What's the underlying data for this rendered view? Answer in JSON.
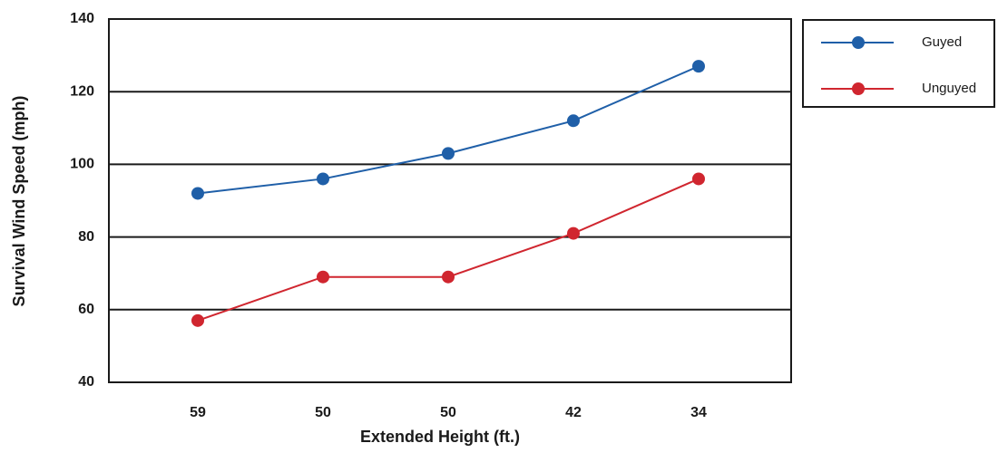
{
  "chart_data": {
    "type": "line",
    "categories": [
      "59",
      "50",
      "50",
      "42",
      "34"
    ],
    "series": [
      {
        "name": "Guyed",
        "color": "#1f5fa8",
        "values": [
          92,
          96,
          103,
          112,
          127
        ]
      },
      {
        "name": "Unguyed",
        "color": "#d0262f",
        "values": [
          57,
          69,
          69,
          81,
          96
        ]
      }
    ],
    "title": "",
    "xlabel": "Extended Height (ft.)",
    "ylabel": "Survival Wind Speed (mph)",
    "ylim": [
      40,
      140
    ],
    "yticks": [
      40,
      60,
      80,
      100,
      120,
      140
    ],
    "grid": true,
    "legend": "top-right"
  }
}
